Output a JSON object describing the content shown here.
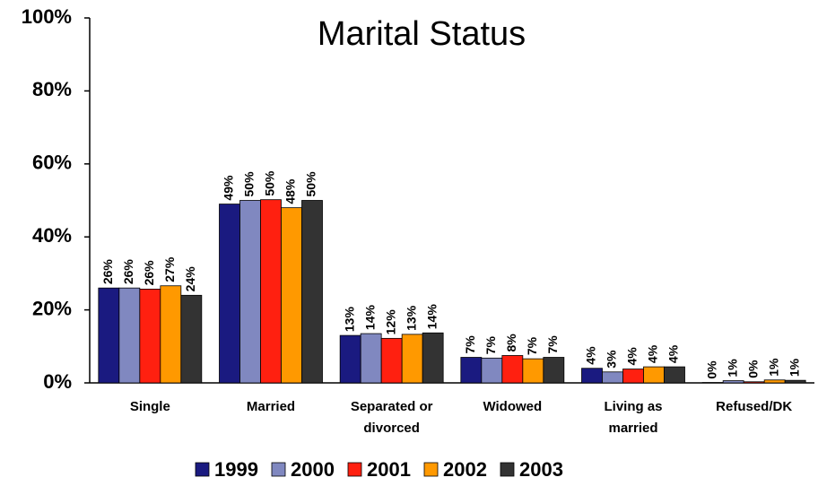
{
  "chart_data": {
    "type": "bar",
    "title": "Marital Status",
    "categories": [
      "Single",
      "Married",
      "Separated or divorced",
      "Widowed",
      "Living as married",
      "Refused/DK"
    ],
    "series": [
      {
        "name": "1999",
        "color": "#1a1a80",
        "values": [
          26,
          49,
          13,
          7,
          4,
          0.1
        ],
        "value_labels": [
          "26%",
          "49%",
          "13%",
          "7%",
          "4%",
          "0%"
        ]
      },
      {
        "name": "2000",
        "color": "#8088c0",
        "values": [
          26,
          50,
          13.5,
          6.8,
          3,
          0.6
        ],
        "value_labels": [
          "26%",
          "50%",
          "14%",
          "7%",
          "3%",
          "1%"
        ]
      },
      {
        "name": "2001",
        "color": "#ff2010",
        "values": [
          25.7,
          50.2,
          12.2,
          7.5,
          3.8,
          0.3
        ],
        "value_labels": [
          "26%",
          "50%",
          "12%",
          "8%",
          "4%",
          "0%"
        ]
      },
      {
        "name": "2002",
        "color": "#ff9900",
        "values": [
          26.6,
          48,
          13.3,
          6.6,
          4.4,
          0.8
        ],
        "value_labels": [
          "27%",
          "48%",
          "13%",
          "7%",
          "4%",
          "1%"
        ]
      },
      {
        "name": "2003",
        "color": "#333333",
        "values": [
          24,
          50,
          13.7,
          7,
          4.4,
          0.7
        ],
        "value_labels": [
          "24%",
          "50%",
          "14%",
          "7%",
          "4%",
          "1%"
        ]
      }
    ],
    "ylim": [
      0,
      100
    ],
    "yticks": [
      {
        "value": 0,
        "label": "0%"
      },
      {
        "value": 20,
        "label": "20%"
      },
      {
        "value": 40,
        "label": "40%"
      },
      {
        "value": 60,
        "label": "60%"
      },
      {
        "value": 80,
        "label": "80%"
      },
      {
        "value": 100,
        "label": "100%"
      }
    ],
    "grid": false,
    "legend": "bottom"
  }
}
